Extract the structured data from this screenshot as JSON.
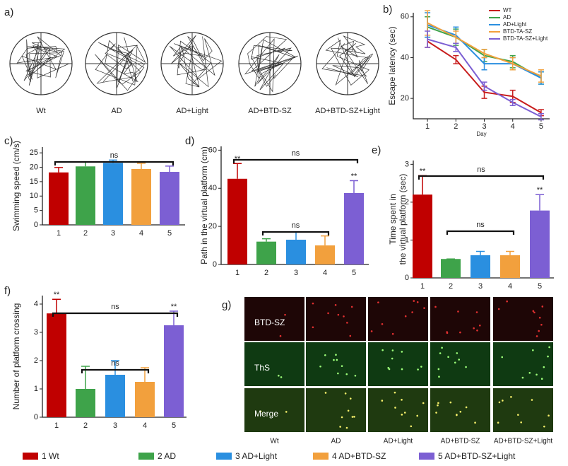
{
  "maze": {
    "label": "a)",
    "groups": [
      "Wt",
      "AD",
      "AD+Light",
      "AD+BTD-SZ",
      "AD+BTD-SZ+Light"
    ]
  },
  "chart_data": [
    {
      "type": "line",
      "panel_label": "b)",
      "ylabel": "Escape latency (sec)",
      "xlabel": "Day",
      "x": [
        1,
        2,
        3,
        4,
        5
      ],
      "xlim": [
        0.5,
        5.3
      ],
      "xticks": [
        1,
        2,
        3,
        4,
        5
      ],
      "ylim": [
        10,
        62
      ],
      "yticks": [
        20,
        40,
        60
      ],
      "series": [
        {
          "name": "WT",
          "color": "#c81e1e",
          "values": [
            48,
            39,
            23,
            21,
            13
          ],
          "errors": [
            3,
            2,
            3,
            3,
            1.5
          ]
        },
        {
          "name": "AD",
          "color": "#3ea34a",
          "values": [
            55,
            50,
            41,
            38,
            30
          ],
          "errors": [
            5,
            4,
            3,
            3,
            3
          ]
        },
        {
          "name": "AD+Light",
          "color": "#2a8fe0",
          "values": [
            56,
            51,
            37,
            37,
            30
          ],
          "errors": [
            6,
            4,
            3,
            3,
            3
          ]
        },
        {
          "name": "BTD-TA-SZ",
          "color": "#f2a03d",
          "values": [
            57,
            50,
            42,
            37,
            31
          ],
          "errors": [
            6,
            3,
            2,
            3,
            3
          ]
        },
        {
          "name": "BTD-TA-SZ+Light",
          "color": "#7c5fd3",
          "values": [
            49,
            45,
            26,
            18,
            11
          ],
          "errors": [
            4,
            2,
            2,
            1.5,
            1.5
          ]
        }
      ]
    },
    {
      "type": "bar",
      "panel_label": "c)",
      "ylabel": "Swimming speed (cm/s)",
      "categories": [
        "1",
        "2",
        "3",
        "4",
        "5"
      ],
      "values": [
        18.2,
        20.3,
        21.5,
        19.4,
        18.4
      ],
      "errors": [
        1.7,
        1.5,
        1.0,
        2.0,
        2.0
      ],
      "colors": [
        "#c00000",
        "#3ea34a",
        "#2a8fe0",
        "#f2a03d",
        "#7c5fd3"
      ],
      "ylim": [
        0,
        27
      ],
      "yticks": [
        0,
        5,
        10,
        15,
        20,
        25
      ],
      "brackets": [
        "ns"
      ],
      "significance": [
        null,
        null,
        null,
        null,
        null
      ]
    },
    {
      "type": "bar",
      "panel_label": "d)",
      "ylabel": "Path in the virtual platform (cm)",
      "categories": [
        "1",
        "2",
        "3",
        "4",
        "5"
      ],
      "values": [
        45,
        12,
        13,
        10,
        37.5
      ],
      "errors": [
        8,
        1.5,
        4,
        5,
        6.5
      ],
      "colors": [
        "#c00000",
        "#3ea34a",
        "#2a8fe0",
        "#f2a03d",
        "#7c5fd3"
      ],
      "ylim": [
        0,
        62
      ],
      "yticks": [
        0,
        20,
        40,
        60
      ],
      "brackets": [
        "ns",
        "ns"
      ],
      "significance": [
        "**",
        null,
        null,
        null,
        "**"
      ]
    },
    {
      "type": "bar",
      "panel_label": "e)",
      "ylabel": [
        "Time spent in",
        "the virtual platform (sec)"
      ],
      "categories": [
        "1",
        "2",
        "3",
        "4",
        "5"
      ],
      "values": [
        2.2,
        0.5,
        0.6,
        0.6,
        1.78
      ],
      "errors": [
        0.5,
        0,
        0.1,
        0.1,
        0.42
      ],
      "colors": [
        "#c00000",
        "#3ea34a",
        "#2a8fe0",
        "#f2a03d",
        "#7c5fd3"
      ],
      "ylim": [
        0,
        3.1
      ],
      "yticks": [
        0,
        1,
        2,
        3
      ],
      "brackets": [
        "ns",
        "ns"
      ],
      "significance": [
        "**",
        null,
        null,
        null,
        "**"
      ]
    },
    {
      "type": "bar",
      "panel_label": "f)",
      "ylabel": "Number of platform crossing",
      "categories": [
        "1",
        "2",
        "3",
        "4",
        "5"
      ],
      "values": [
        3.67,
        1.0,
        1.5,
        1.25,
        3.25
      ],
      "errors": [
        0.5,
        0.8,
        0.5,
        0.5,
        0.5
      ],
      "colors": [
        "#c00000",
        "#3ea34a",
        "#2a8fe0",
        "#f2a03d",
        "#7c5fd3"
      ],
      "ylim": [
        0,
        4.3
      ],
      "yticks": [
        0,
        1,
        2,
        3,
        4
      ],
      "brackets": [
        "ns",
        "ns"
      ],
      "significance": [
        "**",
        null,
        null,
        null,
        "**"
      ]
    }
  ],
  "microscopy": {
    "label": "g)",
    "rows": [
      "BTD-SZ",
      "ThS",
      "Merge"
    ],
    "columns": [
      "Wt",
      "AD",
      "AD+Light",
      "AD+BTD-SZ",
      "AD+BTD-SZ+Light"
    ]
  },
  "legend": [
    {
      "name": "1 Wt",
      "color": "#c00000"
    },
    {
      "name": "2 AD",
      "color": "#3ea34a"
    },
    {
      "name": "3 AD+Light",
      "color": "#2a8fe0"
    },
    {
      "name": "4 AD+BTD-SZ",
      "color": "#f2a03d"
    },
    {
      "name": "5 AD+BTD-SZ+Light",
      "color": "#7c5fd3"
    }
  ]
}
